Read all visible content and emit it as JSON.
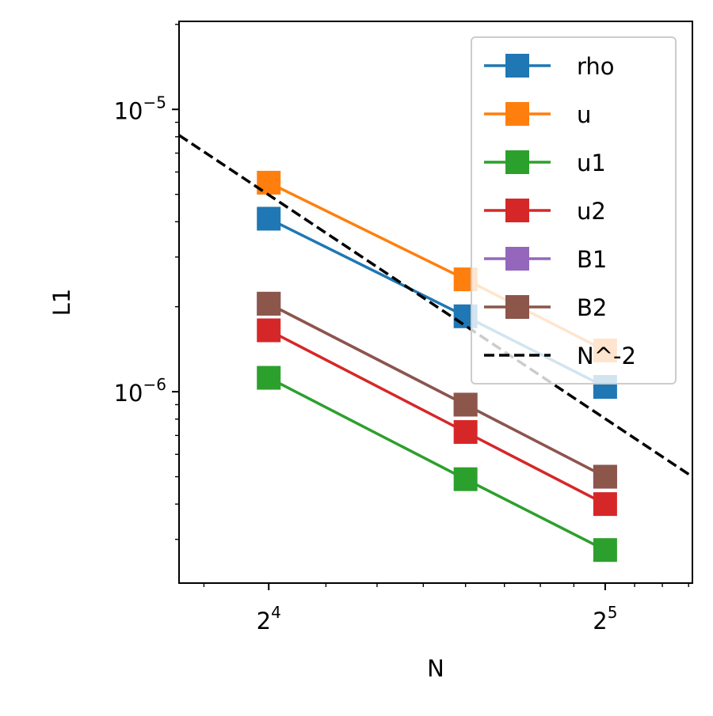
{
  "chart_data": {
    "type": "line",
    "xscale": "log2",
    "yscale": "log10",
    "xlabel": "N",
    "ylabel": "L1",
    "xlim": [
      13.3,
      38.3
    ],
    "ylim": [
      2.1e-07,
      2.05e-05
    ],
    "x_ticks": [
      {
        "value": 16,
        "base": "2",
        "exp": "4"
      },
      {
        "value": 32,
        "base": "2",
        "exp": "5"
      }
    ],
    "y_ticks": [
      {
        "value": 1e-05,
        "base": "10",
        "exp": "−5"
      },
      {
        "value": 1e-06,
        "base": "10",
        "exp": "−6"
      }
    ],
    "x": [
      16,
      24,
      32
    ],
    "series": [
      {
        "name": "rho",
        "color": "#1f77b4",
        "marker": "square",
        "values": [
          4.1e-06,
          1.85e-06,
          1.04e-06
        ]
      },
      {
        "name": "u",
        "color": "#ff7f0e",
        "marker": "square",
        "values": [
          5.5e-06,
          2.5e-06,
          1.4e-06
        ]
      },
      {
        "name": "u1",
        "color": "#2ca02c",
        "marker": "square",
        "values": [
          1.12e-06,
          4.9e-07,
          2.75e-07
        ]
      },
      {
        "name": "u2",
        "color": "#d62728",
        "marker": "square",
        "values": [
          1.65e-06,
          7.2e-07,
          4e-07
        ]
      },
      {
        "name": "B1",
        "color": "#9467bd",
        "marker": "square",
        "values": [
          2.05e-06,
          9e-07,
          5e-07
        ]
      },
      {
        "name": "B2",
        "color": "#8c564b",
        "marker": "square",
        "values": [
          2.05e-06,
          9e-07,
          5e-07
        ]
      }
    ],
    "reference": {
      "name": "N^-2",
      "color": "#000000",
      "style": "dashed",
      "x": [
        13.3,
        38.3
      ],
      "values": [
        8.1e-06,
        5e-07
      ]
    },
    "grid": false,
    "legend_position": "upper-right"
  }
}
